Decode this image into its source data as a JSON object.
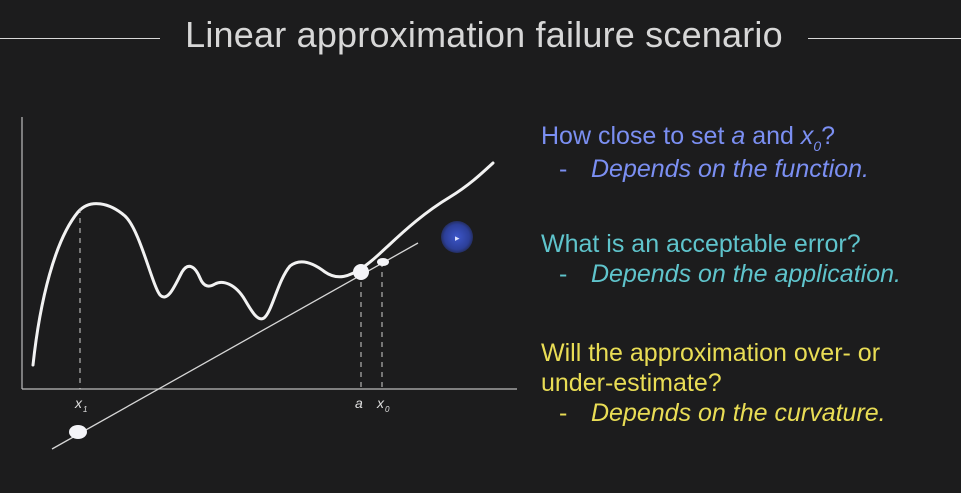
{
  "slide": {
    "title": "Linear approximation failure scenario"
  },
  "diagram": {
    "labels": {
      "x1": "x",
      "x1_sub": "1",
      "a": "a",
      "x0": "x",
      "x0_sub": "0"
    }
  },
  "qa": [
    {
      "q_before": "How close to set ",
      "q_a": "a",
      "q_and": " and ",
      "q_x": "x",
      "q_sub": "0",
      "q_after": "?",
      "dash": "-",
      "answer": "Depends on the function.",
      "color": "#7b8ff2"
    },
    {
      "question": "What is an acceptable error?",
      "dash": "-",
      "answer": "Depends on the application.",
      "color": "#5fc4cc"
    },
    {
      "question_line1": "Will the approximation over- or",
      "question_line2": "under-estimate?",
      "dash": "-",
      "answer": "Depends on the curvature.",
      "color": "#e9dd55"
    }
  ],
  "colors": {
    "background": "#1c1c1d",
    "curve": "#f2f2f2",
    "axis": "#bdbdbd",
    "cursor": "#3d56c9"
  }
}
